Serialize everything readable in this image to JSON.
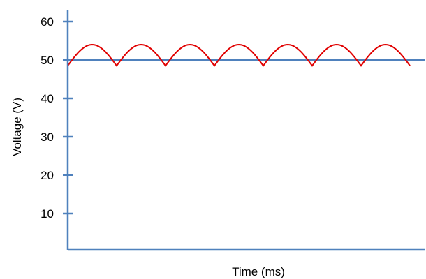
{
  "chart_data": {
    "type": "line",
    "title": "",
    "xlabel": "Time (ms)",
    "ylabel": "Voltage (V)",
    "ylim": [
      0,
      63
    ],
    "yticks": [
      10,
      20,
      30,
      40,
      50,
      60
    ],
    "ytick_labels": [
      "10",
      "20",
      "30",
      "40",
      "50",
      "60"
    ],
    "xticks_visible": false,
    "grid": false,
    "legend": "none",
    "reference_line": {
      "y": 50
    },
    "series": [
      {
        "waveform": "full-wave rectified sine (ripple)",
        "peaks": 7,
        "min_value": 48.5,
        "max_value": 54
      }
    ],
    "colors": {
      "axis": "#4f81bd",
      "series": "#e00000",
      "reference_line": "#4f81bd"
    }
  }
}
